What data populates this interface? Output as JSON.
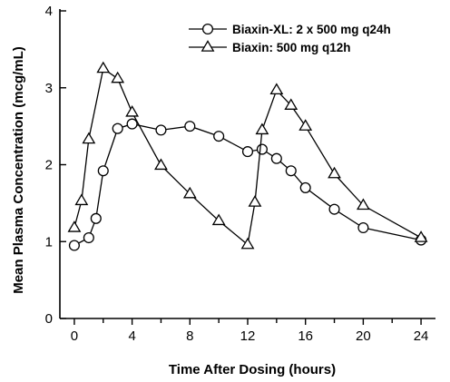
{
  "chart_data": {
    "type": "line",
    "xlabel": "Time After Dosing (hours)",
    "ylabel": "Mean Plasma Concentration (mcg/mL)",
    "xlim": [
      -1,
      25
    ],
    "ylim": [
      0,
      4
    ],
    "xticks": [
      0,
      4,
      8,
      12,
      16,
      20,
      24
    ],
    "yticks": [
      0,
      1,
      2,
      3,
      4
    ],
    "grid": false,
    "legend_position": "top-right",
    "series": [
      {
        "name": "Biaxin-XL: 2 x 500 mg q24h",
        "marker": "circle",
        "x": [
          0,
          1,
          1.5,
          2,
          3,
          4,
          6,
          8,
          10,
          12,
          13,
          14,
          15,
          16,
          18,
          20,
          24
        ],
        "y": [
          0.95,
          1.05,
          1.3,
          1.92,
          2.47,
          2.53,
          2.45,
          2.5,
          2.37,
          2.17,
          2.2,
          2.08,
          1.92,
          1.7,
          1.42,
          1.18,
          1.02
        ]
      },
      {
        "name": "Biaxin: 500 mg q12h",
        "marker": "triangle",
        "x": [
          0,
          0.5,
          1,
          2,
          3,
          4,
          6,
          8,
          10,
          12,
          12.5,
          13,
          14,
          15,
          16,
          18,
          20,
          24
        ],
        "y": [
          1.18,
          1.53,
          2.33,
          3.25,
          3.12,
          2.68,
          1.99,
          1.62,
          1.27,
          0.96,
          1.51,
          2.45,
          2.97,
          2.77,
          2.5,
          1.88,
          1.47,
          1.05
        ]
      }
    ]
  }
}
